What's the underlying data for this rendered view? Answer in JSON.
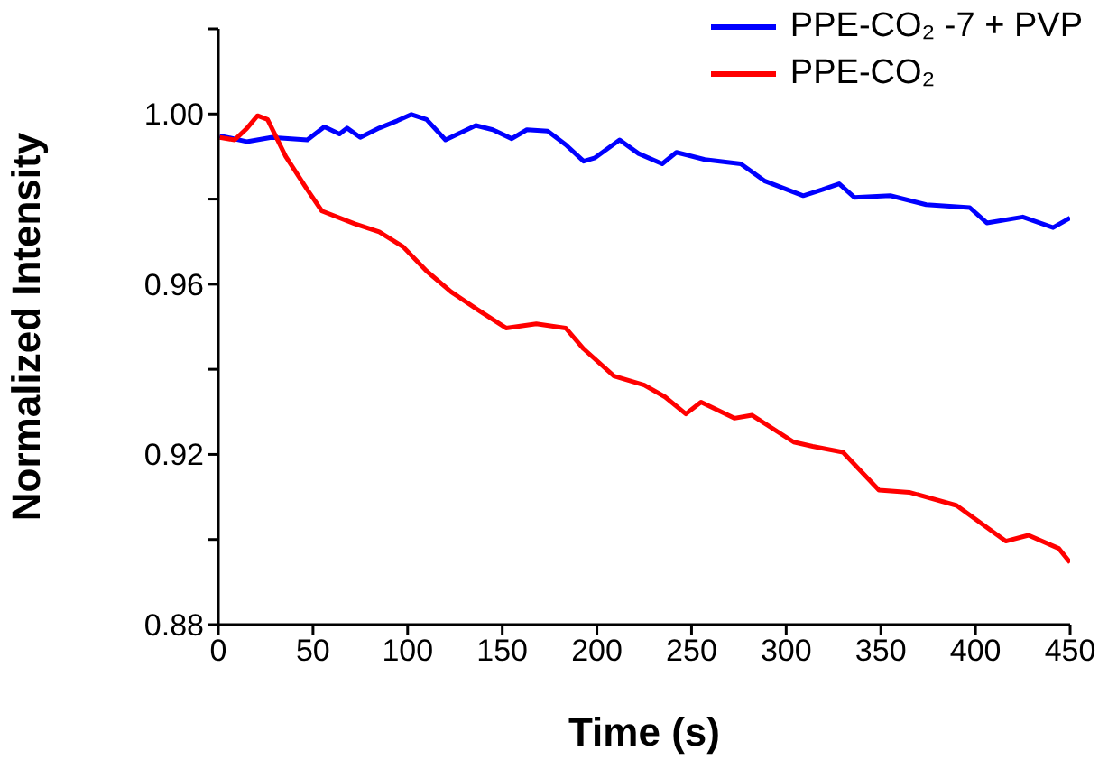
{
  "chart_data": {
    "type": "line",
    "xlabel": "Time (s)",
    "ylabel": "Normalized Intensity",
    "xlim": [
      0,
      450
    ],
    "xticks": [
      0,
      50,
      100,
      150,
      200,
      250,
      300,
      350,
      400,
      450
    ],
    "ylim": [
      0.88,
      1.02
    ],
    "yticks": [
      {
        "value": 0.88,
        "label": "0.88"
      },
      {
        "value": 0.9,
        "label": null
      },
      {
        "value": 0.92,
        "label": "0.92"
      },
      {
        "value": 0.94,
        "label": null
      },
      {
        "value": 0.96,
        "label": "0.96"
      },
      {
        "value": 0.98,
        "label": null
      },
      {
        "value": 1.0,
        "label": "1.00"
      },
      {
        "value": 1.02,
        "label": null
      }
    ],
    "grid": false,
    "legend": "top right",
    "line_style": "solid",
    "series": [
      {
        "name": "PPE-CO₂ -7 + PVP",
        "color": "#0000ff",
        "x": [
          0.7,
          15,
          28,
          47,
          56,
          64,
          68,
          75,
          85,
          94.5,
          102,
          110,
          120,
          136,
          145,
          155,
          163,
          174,
          183.5,
          193,
          199,
          212,
          222,
          234.5,
          242,
          257,
          276,
          288.5,
          309,
          319,
          328,
          336,
          355,
          374,
          397,
          406,
          425,
          441,
          450
        ],
        "values": [
          0.9949,
          0.9935,
          0.9945,
          0.9939,
          0.997,
          0.9953,
          0.9967,
          0.9945,
          0.9967,
          0.9984,
          0.9999,
          0.9987,
          0.9939,
          0.9973,
          0.9963,
          0.9942,
          0.9963,
          0.996,
          0.9928,
          0.9889,
          0.9897,
          0.9939,
          0.9907,
          0.9883,
          0.991,
          0.9893,
          0.9883,
          0.9843,
          0.9808,
          0.9822,
          0.9836,
          0.9804,
          0.9808,
          0.9787,
          0.978,
          0.9744,
          0.9758,
          0.9733,
          0.9756
        ]
      },
      {
        "name": "PPE-CO₂",
        "color": "#ff0000",
        "x": [
          0.7,
          8.6,
          15,
          20.7,
          26,
          35.6,
          47,
          54.7,
          72,
          85,
          97.6,
          110,
          123,
          137,
          152,
          168,
          183.5,
          193,
          209,
          225,
          236,
          247,
          255,
          272.6,
          282,
          304,
          314,
          330,
          349,
          365,
          390,
          416,
          428,
          444,
          450
        ],
        "values": [
          0.9945,
          0.9939,
          0.9966,
          0.9996,
          0.9987,
          0.99,
          0.9822,
          0.9772,
          0.9742,
          0.9723,
          0.9688,
          0.9631,
          0.9582,
          0.954,
          0.9497,
          0.9507,
          0.9497,
          0.9448,
          0.9384,
          0.9363,
          0.9335,
          0.9295,
          0.9323,
          0.9285,
          0.9292,
          0.9229,
          0.9219,
          0.9205,
          0.9116,
          0.9111,
          0.908,
          0.8996,
          0.901,
          0.8979,
          0.8946
        ]
      }
    ]
  }
}
